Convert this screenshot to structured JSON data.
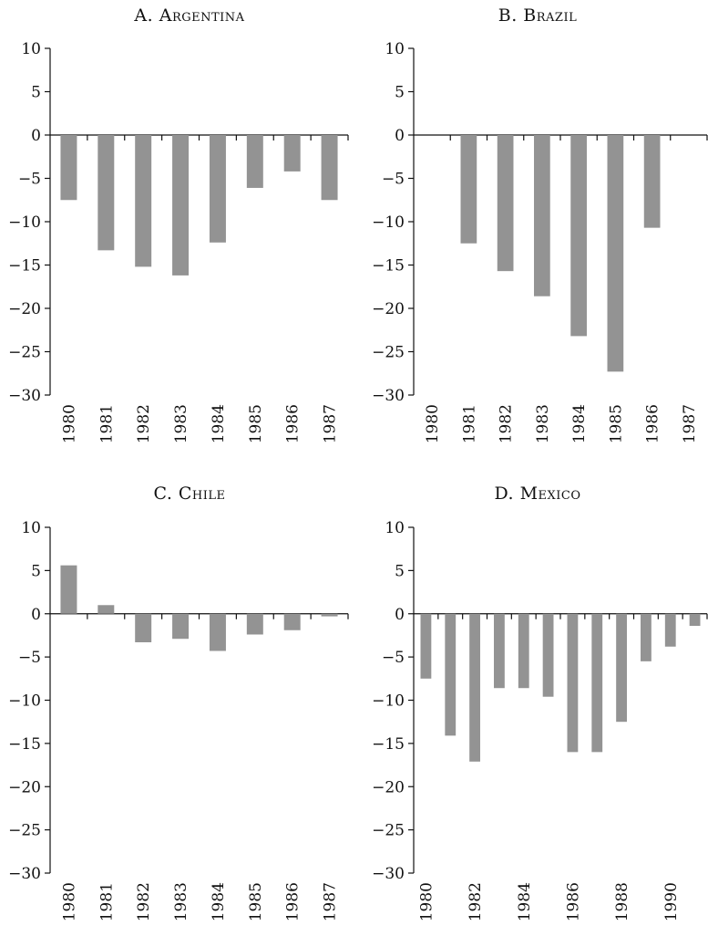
{
  "chart_data": [
    {
      "type": "bar",
      "title": "A. Argentina",
      "categories": [
        "1980",
        "1981",
        "1982",
        "1983",
        "1984",
        "1985",
        "1986",
        "1987"
      ],
      "values": [
        -7.5,
        -13.3,
        -15.2,
        -16.2,
        -12.4,
        -6.1,
        -4.2,
        -7.5
      ],
      "ylim": [
        -30,
        10
      ],
      "yticks": [
        10,
        5,
        0,
        -5,
        -10,
        -15,
        -20,
        -25,
        -30
      ],
      "ytick_labels": [
        "10",
        "5",
        "0",
        "−5",
        "−10",
        "−15",
        "−20",
        "−25",
        "−30"
      ],
      "xtick_labels": [
        "1980",
        "1981",
        "1982",
        "1983",
        "1984",
        "1985",
        "1986",
        "1987"
      ],
      "grid": false
    },
    {
      "type": "bar",
      "title": "B. Brazil",
      "categories": [
        "1980",
        "1981",
        "1982",
        "1983",
        "1984",
        "1985",
        "1986",
        "1987"
      ],
      "values": [
        0,
        -12.5,
        -15.7,
        -18.6,
        -23.2,
        -27.3,
        -10.7,
        0
      ],
      "ylim": [
        -30,
        10
      ],
      "yticks": [
        10,
        5,
        0,
        -5,
        -10,
        -15,
        -20,
        -25,
        -30
      ],
      "ytick_labels": [
        "10",
        "5",
        "0",
        "−5",
        "−10",
        "−15",
        "−20",
        "−25",
        "−30"
      ],
      "xtick_labels": [
        "1980",
        "1981",
        "1982",
        "1983",
        "1984",
        "1985",
        "1986",
        "1987"
      ],
      "grid": false
    },
    {
      "type": "bar",
      "title": "C. Chile",
      "categories": [
        "1980",
        "1981",
        "1982",
        "1983",
        "1984",
        "1985",
        "1986",
        "1987"
      ],
      "values": [
        5.6,
        1.0,
        -3.3,
        -2.9,
        -4.3,
        -2.4,
        -1.9,
        -0.3
      ],
      "ylim": [
        -30,
        10
      ],
      "yticks": [
        10,
        5,
        0,
        -5,
        -10,
        -15,
        -20,
        -25,
        -30
      ],
      "ytick_labels": [
        "10",
        "5",
        "0",
        "−5",
        "−10",
        "−15",
        "−20",
        "−25",
        "−30"
      ],
      "xtick_labels": [
        "1980",
        "1981",
        "1982",
        "1983",
        "1984",
        "1985",
        "1986",
        "1987"
      ],
      "grid": false
    },
    {
      "type": "bar",
      "title": "D. Mexico",
      "categories": [
        "1980",
        "1981",
        "1982",
        "1983",
        "1984",
        "1985",
        "1986",
        "1987",
        "1988",
        "1989",
        "1990",
        "1991"
      ],
      "values": [
        -7.5,
        -14.1,
        -17.1,
        -8.6,
        -8.6,
        -9.6,
        -16.0,
        -16.0,
        -12.5,
        -5.5,
        -3.8,
        -1.4
      ],
      "ylim": [
        -30,
        10
      ],
      "yticks": [
        10,
        5,
        0,
        -5,
        -10,
        -15,
        -20,
        -25,
        -30
      ],
      "ytick_labels": [
        "10",
        "5",
        "0",
        "−5",
        "−10",
        "−15",
        "−20",
        "−25",
        "−30"
      ],
      "xtick_labels": [
        "1980",
        "",
        "1982",
        "",
        "1984",
        "",
        "1986",
        "",
        "1988",
        "",
        "1990",
        ""
      ],
      "grid": false
    }
  ],
  "colors": {
    "bar": "#939393",
    "axis": "#111111"
  }
}
